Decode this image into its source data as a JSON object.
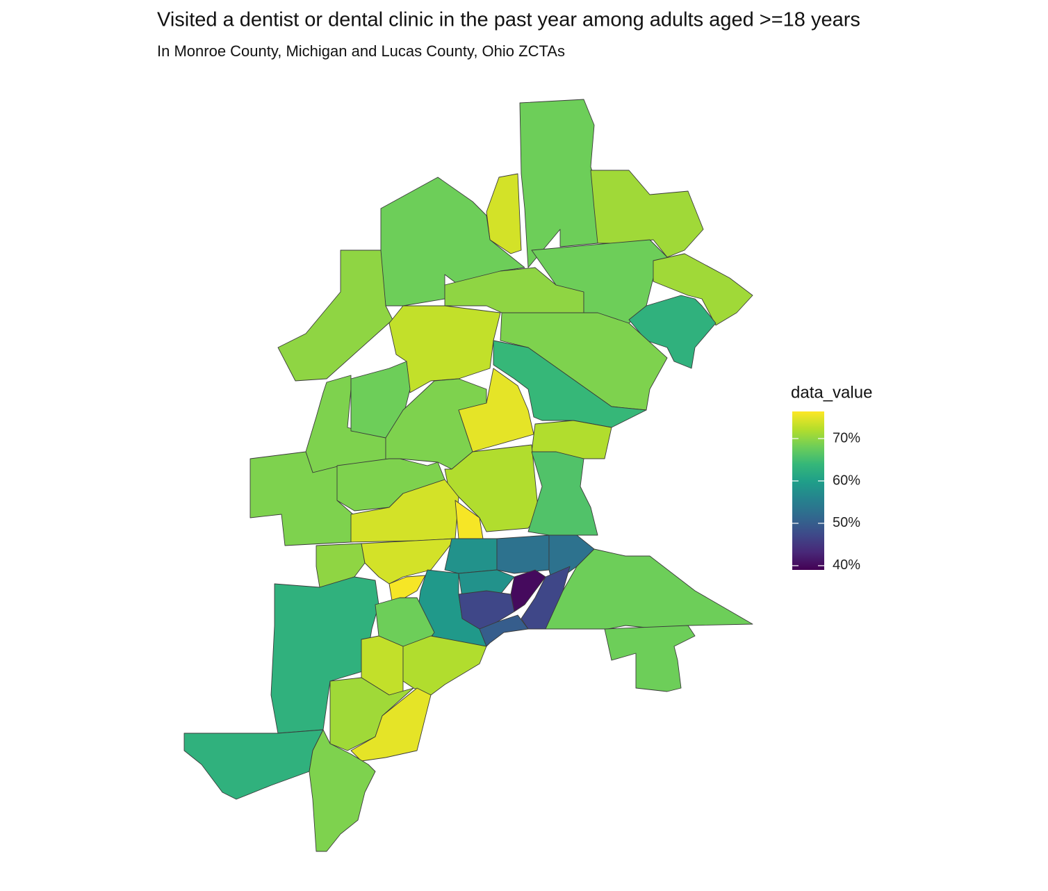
{
  "chart_data": {
    "type": "choropleth",
    "title": "Visited a dentist or dental clinic in the past year among adults aged >=18 years",
    "subtitle": "In Monroe County, Michigan and Lucas County, Ohio ZCTAs",
    "legend_title": "data_value",
    "colors": [
      "#440154",
      "#482878",
      "#3e4989",
      "#31688e",
      "#26828e",
      "#1f9e89",
      "#35b779",
      "#6ece58",
      "#b5de2b",
      "#fde725"
    ],
    "lim": [
      39,
      76.4
    ],
    "ticks": [
      {
        "value": 40,
        "label": "40%"
      },
      {
        "value": 50,
        "label": "50%"
      },
      {
        "value": 60,
        "label": "60%"
      },
      {
        "value": 70,
        "label": "70%"
      }
    ],
    "values": [
      68,
      74,
      71,
      68,
      70,
      70,
      68,
      71,
      63,
      73,
      69,
      64,
      69,
      68,
      69,
      75,
      72,
      69,
      69,
      72,
      66,
      74,
      76,
      70,
      74,
      76,
      58,
      53,
      53,
      63,
      63,
      59,
      58,
      47,
      40,
      47,
      50,
      68,
      68,
      68,
      73,
      72,
      71,
      75,
      69
    ]
  }
}
